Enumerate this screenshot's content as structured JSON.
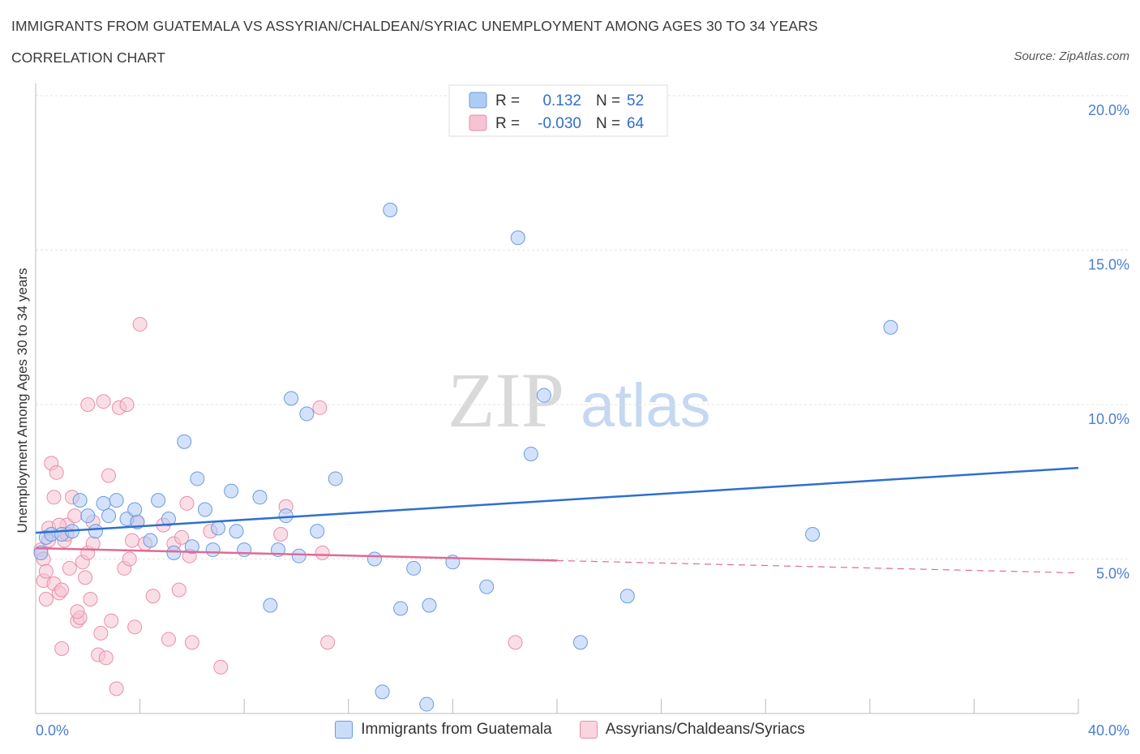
{
  "header": {
    "title": "IMMIGRANTS FROM GUATEMALA VS ASSYRIAN/CHALDEAN/SYRIAC UNEMPLOYMENT AMONG AGES 30 TO 34 YEARS",
    "subtitle": "CORRELATION CHART",
    "source": "Source: ZipAtlas.com"
  },
  "watermark": {
    "zip": "ZIP",
    "atlas": "atlas"
  },
  "stats_legend": {
    "r_label": "R =",
    "n_label": "N =",
    "rows": [
      {
        "r": "0.132",
        "n": "52",
        "swatch_color": "#aecbf5",
        "swatch_border": "#6a9be0"
      },
      {
        "r": "-0.030",
        "n": "64",
        "swatch_color": "#f6c3d2",
        "swatch_border": "#e88fab"
      }
    ]
  },
  "chart_data": {
    "type": "scatter",
    "title": "IMMIGRANTS FROM GUATEMALA VS ASSYRIAN/CHALDEAN/SYRIAC UNEMPLOYMENT AMONG AGES 30 TO 34 YEARS",
    "xlabel": "",
    "ylabel": "Unemployment Among Ages 30 to 34 years",
    "xlim": [
      0,
      40
    ],
    "ylim": [
      0,
      20
    ],
    "x_tick_labels": [
      "0.0%",
      "40.0%"
    ],
    "y_ticks": [
      5,
      10,
      15,
      20
    ],
    "y_tick_labels": [
      "5.0%",
      "10.0%",
      "15.0%",
      "20.0%"
    ],
    "grid": true,
    "series": [
      {
        "name": "Immigrants from Guatemala",
        "color": "#aecbf5",
        "stroke": "#6a9be0",
        "line_color": "#2f6fce",
        "trend": {
          "x": [
            0,
            40
          ],
          "y": [
            5.85,
            7.95
          ]
        },
        "points": [
          [
            0.2,
            5.2
          ],
          [
            0.4,
            5.7
          ],
          [
            0.6,
            5.8
          ],
          [
            1.0,
            5.8
          ],
          [
            1.4,
            5.9
          ],
          [
            1.7,
            6.9
          ],
          [
            2.0,
            6.4
          ],
          [
            2.3,
            5.9
          ],
          [
            2.6,
            6.8
          ],
          [
            2.8,
            6.4
          ],
          [
            3.1,
            6.9
          ],
          [
            3.5,
            6.3
          ],
          [
            3.9,
            6.2
          ],
          [
            3.8,
            6.6
          ],
          [
            4.4,
            5.6
          ],
          [
            4.7,
            6.9
          ],
          [
            5.1,
            6.3
          ],
          [
            5.3,
            5.2
          ],
          [
            5.7,
            8.8
          ],
          [
            6.0,
            5.4
          ],
          [
            6.2,
            7.6
          ],
          [
            6.5,
            6.6
          ],
          [
            6.8,
            5.3
          ],
          [
            7.0,
            6.0
          ],
          [
            7.5,
            7.2
          ],
          [
            7.7,
            5.9
          ],
          [
            8.0,
            5.3
          ],
          [
            8.6,
            7.0
          ],
          [
            9.0,
            3.5
          ],
          [
            9.3,
            5.3
          ],
          [
            9.6,
            6.4
          ],
          [
            9.8,
            10.2
          ],
          [
            10.1,
            5.1
          ],
          [
            10.4,
            9.7
          ],
          [
            10.8,
            5.9
          ],
          [
            11.5,
            7.6
          ],
          [
            13.0,
            5.0
          ],
          [
            13.6,
            16.3
          ],
          [
            14.0,
            3.4
          ],
          [
            14.5,
            4.7
          ],
          [
            15.1,
            3.5
          ],
          [
            16.0,
            4.9
          ],
          [
            17.3,
            4.1
          ],
          [
            18.5,
            15.4
          ],
          [
            19.0,
            8.4
          ],
          [
            19.5,
            10.3
          ],
          [
            20.9,
            2.3
          ],
          [
            22.7,
            3.8
          ],
          [
            29.8,
            5.8
          ],
          [
            32.8,
            12.5
          ],
          [
            13.3,
            0.7
          ],
          [
            15.0,
            0.3
          ]
        ]
      },
      {
        "name": "Assyrians/Chaldeans/Syriacs",
        "color": "#f6c3d2",
        "stroke": "#e88fab",
        "line_color": "#e06a95",
        "trend": {
          "x": [
            0,
            20
          ],
          "y": [
            5.35,
            4.95
          ]
        },
        "trend_dashed": {
          "x": [
            20,
            40
          ],
          "y": [
            4.95,
            4.55
          ]
        },
        "points": [
          [
            0.2,
            5.3
          ],
          [
            0.3,
            4.3
          ],
          [
            0.4,
            3.7
          ],
          [
            0.5,
            5.6
          ],
          [
            0.6,
            8.1
          ],
          [
            0.7,
            4.2
          ],
          [
            0.8,
            7.8
          ],
          [
            0.9,
            3.9
          ],
          [
            1.0,
            4.0
          ],
          [
            1.1,
            5.6
          ],
          [
            1.2,
            6.1
          ],
          [
            1.3,
            4.7
          ],
          [
            1.4,
            7.0
          ],
          [
            1.5,
            6.4
          ],
          [
            1.6,
            3.0
          ],
          [
            1.7,
            3.1
          ],
          [
            1.8,
            4.9
          ],
          [
            1.9,
            4.4
          ],
          [
            2.0,
            5.2
          ],
          [
            2.1,
            3.7
          ],
          [
            2.2,
            6.2
          ],
          [
            2.4,
            1.9
          ],
          [
            2.5,
            2.6
          ],
          [
            2.6,
            10.1
          ],
          [
            2.7,
            1.8
          ],
          [
            2.8,
            7.7
          ],
          [
            2.9,
            3.0
          ],
          [
            3.1,
            0.8
          ],
          [
            3.2,
            9.9
          ],
          [
            3.4,
            4.7
          ],
          [
            3.5,
            10.0
          ],
          [
            3.6,
            5.0
          ],
          [
            3.7,
            5.6
          ],
          [
            3.8,
            2.8
          ],
          [
            3.9,
            6.2
          ],
          [
            4.0,
            12.6
          ],
          [
            4.2,
            5.5
          ],
          [
            4.5,
            3.8
          ],
          [
            4.9,
            6.1
          ],
          [
            5.1,
            2.4
          ],
          [
            5.3,
            5.5
          ],
          [
            5.5,
            4.0
          ],
          [
            5.6,
            5.7
          ],
          [
            5.8,
            6.8
          ],
          [
            5.9,
            5.1
          ],
          [
            6.0,
            2.3
          ],
          [
            6.7,
            5.9
          ],
          [
            7.1,
            1.5
          ],
          [
            9.4,
            5.8
          ],
          [
            9.6,
            6.7
          ],
          [
            10.9,
            9.9
          ],
          [
            11.0,
            5.2
          ],
          [
            11.2,
            2.3
          ],
          [
            18.4,
            2.3
          ],
          [
            1.0,
            2.1
          ],
          [
            0.3,
            5.0
          ],
          [
            0.5,
            6.0
          ],
          [
            0.9,
            6.1
          ],
          [
            1.2,
            5.8
          ],
          [
            0.4,
            4.6
          ],
          [
            2.0,
            10.0
          ],
          [
            0.7,
            7.0
          ],
          [
            1.6,
            3.3
          ],
          [
            2.2,
            5.5
          ]
        ]
      }
    ]
  },
  "legend": {
    "items": [
      {
        "label": "Immigrants from Guatemala",
        "color": "#c9dcf8",
        "border": "#6a9be0"
      },
      {
        "label": "Assyrians/Chaldeans/Syriacs",
        "color": "#f9d5e0",
        "border": "#e88fab"
      }
    ]
  }
}
